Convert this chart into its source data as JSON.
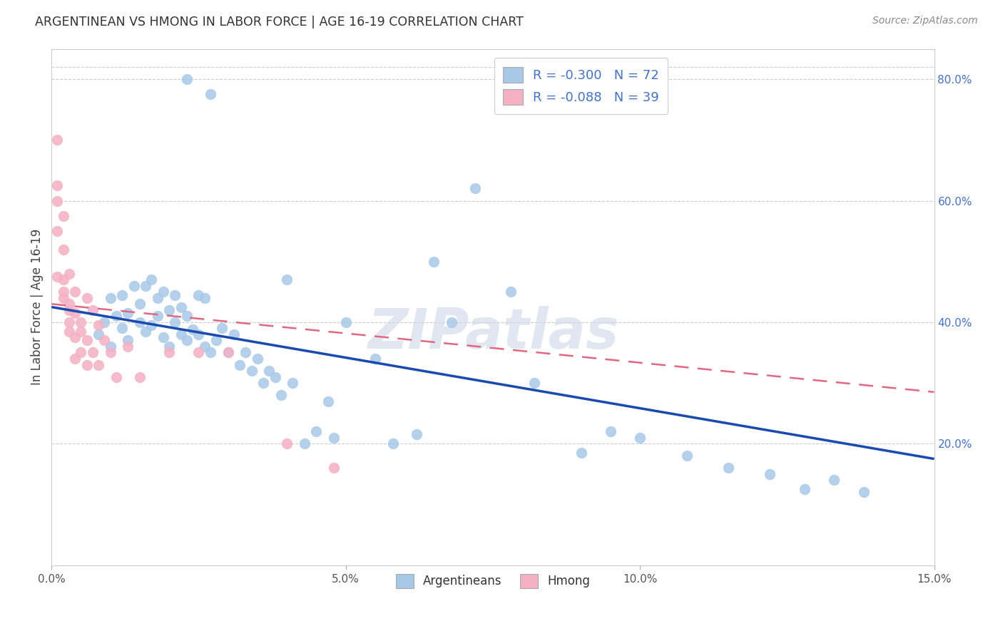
{
  "title": "ARGENTINEAN VS HMONG IN LABOR FORCE | AGE 16-19 CORRELATION CHART",
  "source": "Source: ZipAtlas.com",
  "ylabel": "In Labor Force | Age 16-19",
  "xlim": [
    0.0,
    0.15
  ],
  "ylim": [
    0.0,
    0.85
  ],
  "xticks": [
    0.0,
    0.05,
    0.1,
    0.15
  ],
  "xticklabels": [
    "0.0%",
    "5.0%",
    "10.0%",
    "15.0%"
  ],
  "yticks_right": [
    0.2,
    0.4,
    0.6,
    0.8
  ],
  "yticklabels_right": [
    "20.0%",
    "40.0%",
    "60.0%",
    "80.0%"
  ],
  "legend_r_line1": "R = -0.300   N = 72",
  "legend_r_line2": "R = -0.088   N = 39",
  "legend_bottom_labels": [
    "Argentineans",
    "Hmong"
  ],
  "blue_color": "#a8c8e8",
  "pink_color": "#f4b0c4",
  "trendline_blue_color": "#1a4ab0",
  "trendline_pink_color": "#e06880",
  "watermark": "ZIPatlas",
  "argentinean_x": [
    0.023,
    0.027,
    0.008,
    0.009,
    0.01,
    0.01,
    0.011,
    0.012,
    0.012,
    0.013,
    0.013,
    0.014,
    0.015,
    0.015,
    0.016,
    0.016,
    0.017,
    0.017,
    0.018,
    0.018,
    0.019,
    0.019,
    0.02,
    0.02,
    0.021,
    0.021,
    0.022,
    0.022,
    0.023,
    0.023,
    0.024,
    0.025,
    0.025,
    0.026,
    0.026,
    0.027,
    0.028,
    0.029,
    0.03,
    0.031,
    0.032,
    0.033,
    0.034,
    0.035,
    0.036,
    0.037,
    0.038,
    0.039,
    0.04,
    0.041,
    0.043,
    0.045,
    0.047,
    0.048,
    0.05,
    0.055,
    0.058,
    0.062,
    0.065,
    0.068,
    0.072,
    0.078,
    0.082,
    0.09,
    0.095,
    0.1,
    0.108,
    0.115,
    0.122,
    0.128,
    0.133,
    0.138
  ],
  "argentinean_y": [
    0.8,
    0.775,
    0.38,
    0.4,
    0.44,
    0.36,
    0.41,
    0.39,
    0.445,
    0.415,
    0.37,
    0.46,
    0.43,
    0.4,
    0.385,
    0.46,
    0.47,
    0.395,
    0.44,
    0.41,
    0.45,
    0.375,
    0.42,
    0.36,
    0.445,
    0.4,
    0.425,
    0.38,
    0.41,
    0.37,
    0.388,
    0.445,
    0.38,
    0.44,
    0.36,
    0.35,
    0.37,
    0.39,
    0.35,
    0.38,
    0.33,
    0.35,
    0.32,
    0.34,
    0.3,
    0.32,
    0.31,
    0.28,
    0.47,
    0.3,
    0.2,
    0.22,
    0.27,
    0.21,
    0.4,
    0.34,
    0.2,
    0.215,
    0.5,
    0.4,
    0.62,
    0.45,
    0.3,
    0.185,
    0.22,
    0.21,
    0.18,
    0.16,
    0.15,
    0.125,
    0.14,
    0.12
  ],
  "hmong_x": [
    0.001,
    0.001,
    0.001,
    0.001,
    0.001,
    0.002,
    0.002,
    0.002,
    0.002,
    0.002,
    0.003,
    0.003,
    0.003,
    0.003,
    0.003,
    0.004,
    0.004,
    0.004,
    0.004,
    0.005,
    0.005,
    0.005,
    0.006,
    0.006,
    0.006,
    0.007,
    0.007,
    0.008,
    0.008,
    0.009,
    0.01,
    0.011,
    0.013,
    0.015,
    0.02,
    0.025,
    0.03,
    0.04,
    0.048
  ],
  "hmong_y": [
    0.7,
    0.625,
    0.6,
    0.55,
    0.475,
    0.575,
    0.52,
    0.47,
    0.45,
    0.44,
    0.48,
    0.43,
    0.42,
    0.4,
    0.385,
    0.45,
    0.415,
    0.375,
    0.34,
    0.4,
    0.385,
    0.35,
    0.44,
    0.37,
    0.33,
    0.42,
    0.35,
    0.395,
    0.33,
    0.37,
    0.35,
    0.31,
    0.36,
    0.31,
    0.35,
    0.35,
    0.35,
    0.2,
    0.16
  ]
}
